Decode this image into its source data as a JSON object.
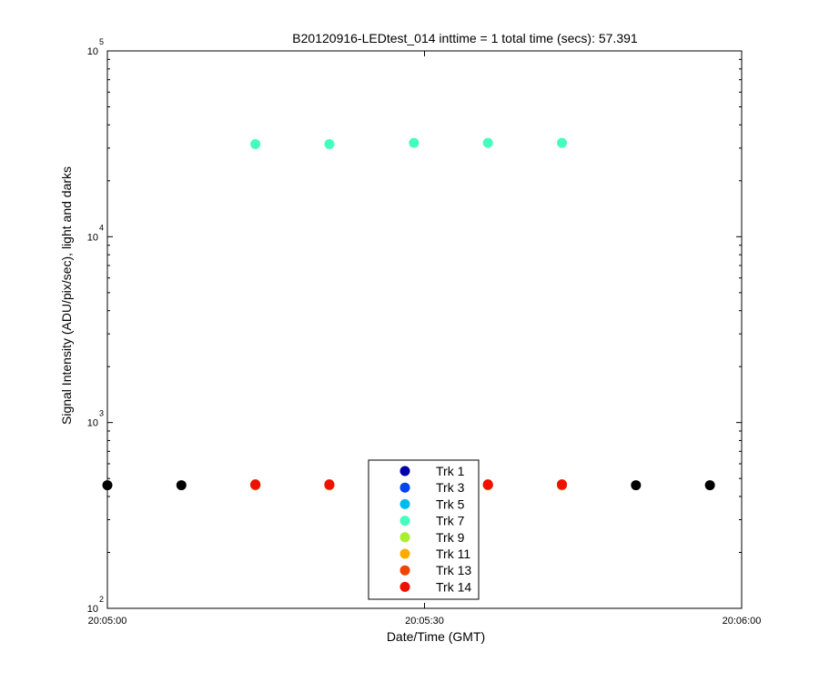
{
  "chart_data": {
    "type": "scatter",
    "title": "B20120916-LEDtest_014 inttime = 1 total time (secs): 57.391",
    "xlabel": "Date/Time (GMT)",
    "ylabel": "Signal Intensity (ADU/pix/sec), light and darks",
    "xlim": [
      "20:05:00",
      "20:06:00"
    ],
    "ylim": [
      100,
      100000
    ],
    "y_scale": "log",
    "x_ticks": [
      "20:05:00",
      "20:05:30",
      "20:06:00"
    ],
    "y_ticks": [
      {
        "value": 100,
        "base": "10",
        "exp": "2"
      },
      {
        "value": 1000,
        "base": "10",
        "exp": "3"
      },
      {
        "value": 10000,
        "base": "10",
        "exp": "4"
      },
      {
        "value": 100000,
        "base": "10",
        "exp": "5"
      }
    ],
    "grid": false,
    "legend_position": "bottom-center",
    "series": [
      {
        "name": "Trk 1",
        "color": "#0000aa",
        "points": [
          [
            "20:05:14",
            460
          ],
          [
            "20:05:21",
            460
          ],
          [
            "20:05:29",
            460
          ],
          [
            "20:05:36",
            460
          ],
          [
            "20:05:43",
            460
          ]
        ]
      },
      {
        "name": "Trk 3",
        "color": "#0044ee",
        "points": [
          [
            "20:05:14",
            460
          ],
          [
            "20:05:21",
            460
          ],
          [
            "20:05:29",
            460
          ],
          [
            "20:05:36",
            460
          ],
          [
            "20:05:43",
            460
          ]
        ]
      },
      {
        "name": "Trk 5",
        "color": "#00bbee",
        "points": [
          [
            "20:05:14",
            460
          ],
          [
            "20:05:21",
            460
          ],
          [
            "20:05:29",
            460
          ],
          [
            "20:05:36",
            460
          ],
          [
            "20:05:43",
            460
          ]
        ]
      },
      {
        "name": "Trk 7",
        "color": "#44ffbb",
        "points": [
          [
            "20:05:14",
            31500
          ],
          [
            "20:05:21",
            31500
          ],
          [
            "20:05:29",
            32000
          ],
          [
            "20:05:36",
            32000
          ],
          [
            "20:05:43",
            32000
          ]
        ]
      },
      {
        "name": "Trk 9",
        "color": "#aaee33",
        "points": [
          [
            "20:05:14",
            460
          ],
          [
            "20:05:21",
            460
          ],
          [
            "20:05:29",
            460
          ],
          [
            "20:05:36",
            460
          ],
          [
            "20:05:43",
            460
          ]
        ]
      },
      {
        "name": "Trk 11",
        "color": "#ffaa00",
        "points": [
          [
            "20:05:14",
            460
          ],
          [
            "20:05:21",
            460
          ],
          [
            "20:05:29",
            460
          ],
          [
            "20:05:36",
            460
          ],
          [
            "20:05:43",
            460
          ]
        ]
      },
      {
        "name": "Trk 13",
        "color": "#ee4400",
        "points": [
          [
            "20:05:14",
            462
          ],
          [
            "20:05:21",
            462
          ],
          [
            "20:05:29",
            462
          ],
          [
            "20:05:36",
            462
          ],
          [
            "20:05:43",
            462
          ]
        ]
      },
      {
        "name": "Trk 14",
        "color": "#ee1100",
        "points": [
          [
            "20:05:14",
            465
          ],
          [
            "20:05:21",
            465
          ],
          [
            "20:05:29",
            465
          ],
          [
            "20:05:36",
            465
          ],
          [
            "20:05:43",
            465
          ]
        ]
      }
    ],
    "dark_series": {
      "color": "#000000",
      "points": [
        [
          "20:05:00",
          460
        ],
        [
          "20:05:07",
          460
        ],
        [
          "20:05:50",
          460
        ],
        [
          "20:05:57",
          460
        ]
      ]
    }
  }
}
